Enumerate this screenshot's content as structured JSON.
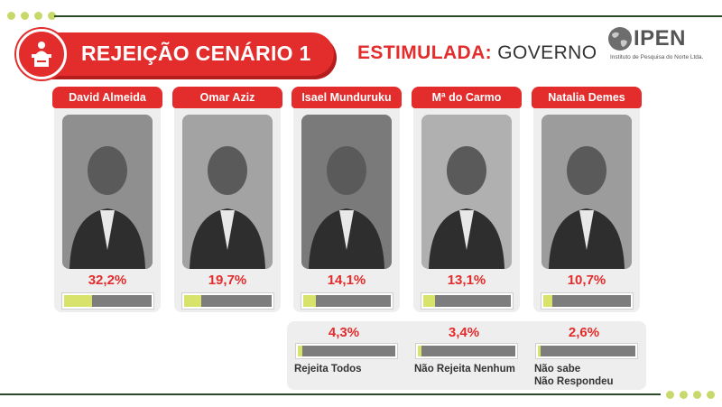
{
  "header": {
    "title": "REJEIÇÃO CENÁRIO 1",
    "subtitle_bold": "ESTIMULADA:",
    "subtitle_rest": " GOVERNO",
    "title_icon": "podium-speaker-icon"
  },
  "logo": {
    "word": "IPEN",
    "tagline": "Instituto de Pesquisa do Norte Ltda."
  },
  "colors": {
    "accent_red": "#e32c2c",
    "bar_fill": "#d7e36a",
    "bar_track": "#7d7d7d",
    "card_bg": "#eeeeee"
  },
  "candidates": [
    {
      "name": "David Almeida",
      "pct_label": "32,2%"
    },
    {
      "name": "Omar Aziz",
      "pct_label": "19,7%"
    },
    {
      "name": "Isael Munduruku",
      "pct_label": "14,1%"
    },
    {
      "name": "Mª do Carmo",
      "pct_label": "13,1%"
    },
    {
      "name": "Natalia Demes",
      "pct_label": "10,7%"
    }
  ],
  "extras": [
    {
      "pct_label": "4,3%",
      "label": "Rejeita Todos"
    },
    {
      "pct_label": "3,4%",
      "label": "Não Rejeita Nenhum"
    },
    {
      "pct_label": "2,6%",
      "label": "Não sabe\nNão Respondeu"
    }
  ],
  "chart_data": {
    "type": "bar",
    "title": "REJEIÇÃO CENÁRIO 1",
    "subtitle": "ESTIMULADA: GOVERNO",
    "categories": [
      "David Almeida",
      "Omar Aziz",
      "Isael Munduruku",
      "Mª do Carmo",
      "Natalia Demes",
      "Rejeita Todos",
      "Não Rejeita Nenhum",
      "Não sabe Não Respondeu"
    ],
    "values": [
      32.2,
      19.7,
      14.1,
      13.1,
      10.7,
      4.3,
      3.4,
      2.6
    ],
    "ylim": [
      0,
      100
    ]
  }
}
